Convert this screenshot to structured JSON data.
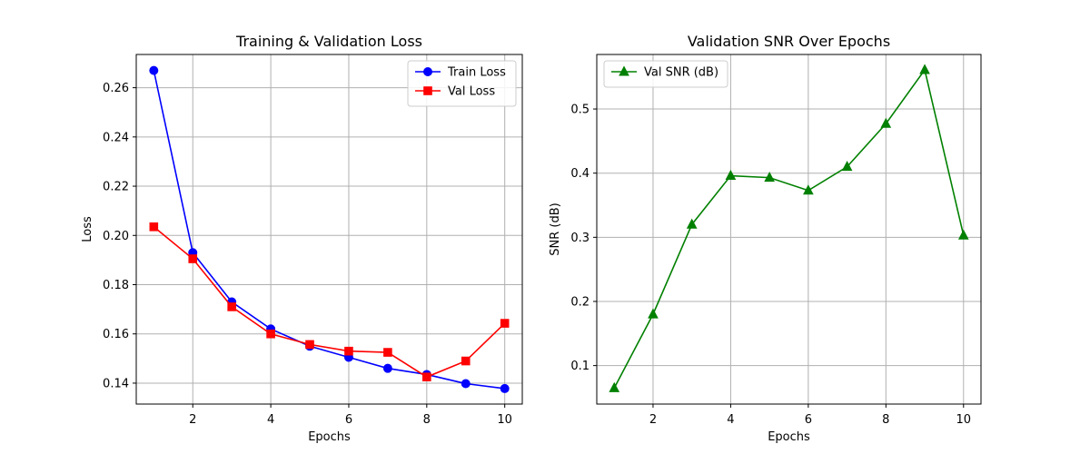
{
  "chart_data": [
    {
      "type": "line",
      "title": "Training & Validation Loss",
      "xlabel": "Epochs",
      "ylabel": "Loss",
      "x": [
        1,
        2,
        3,
        4,
        5,
        6,
        7,
        8,
        9,
        10
      ],
      "xlim": [
        0.55,
        10.45
      ],
      "ylim": [
        0.1315,
        0.2735
      ],
      "xticks": [
        2,
        4,
        6,
        8,
        10
      ],
      "xtick_labels": [
        "2",
        "4",
        "6",
        "8",
        "10"
      ],
      "yticks": [
        0.14,
        0.16,
        0.18,
        0.2,
        0.22,
        0.24,
        0.26
      ],
      "ytick_labels": [
        "0.14",
        "0.16",
        "0.18",
        "0.20",
        "0.22",
        "0.24",
        "0.26"
      ],
      "grid": true,
      "legend": "upper-right",
      "series": [
        {
          "name": "Train Loss",
          "color": "#0000ff",
          "marker": "circle",
          "values": [
            0.267,
            0.193,
            0.173,
            0.162,
            0.155,
            0.1505,
            0.146,
            0.1435,
            0.1398,
            0.1378
          ]
        },
        {
          "name": "Val Loss",
          "color": "#ff0000",
          "marker": "square",
          "values": [
            0.2035,
            0.1905,
            0.171,
            0.16,
            0.1557,
            0.153,
            0.1525,
            0.1425,
            0.149,
            0.1643
          ]
        }
      ]
    },
    {
      "type": "line",
      "title": "Validation SNR Over Epochs",
      "xlabel": "Epochs",
      "ylabel": "SNR (dB)",
      "x": [
        1,
        2,
        3,
        4,
        5,
        6,
        7,
        8,
        9,
        10
      ],
      "xlim": [
        0.55,
        10.45
      ],
      "ylim": [
        0.04,
        0.585
      ],
      "xticks": [
        2,
        4,
        6,
        8,
        10
      ],
      "xtick_labels": [
        "2",
        "4",
        "6",
        "8",
        "10"
      ],
      "yticks": [
        0.1,
        0.2,
        0.3,
        0.4,
        0.5
      ],
      "ytick_labels": [
        "0.1",
        "0.2",
        "0.3",
        "0.4",
        "0.5"
      ],
      "grid": true,
      "legend": "upper-left",
      "series": [
        {
          "name": "Val SNR (dB)",
          "color": "#008000",
          "marker": "triangle",
          "values": [
            0.065,
            0.18,
            0.32,
            0.396,
            0.393,
            0.373,
            0.41,
            0.477,
            0.561,
            0.303
          ]
        }
      ]
    }
  ]
}
